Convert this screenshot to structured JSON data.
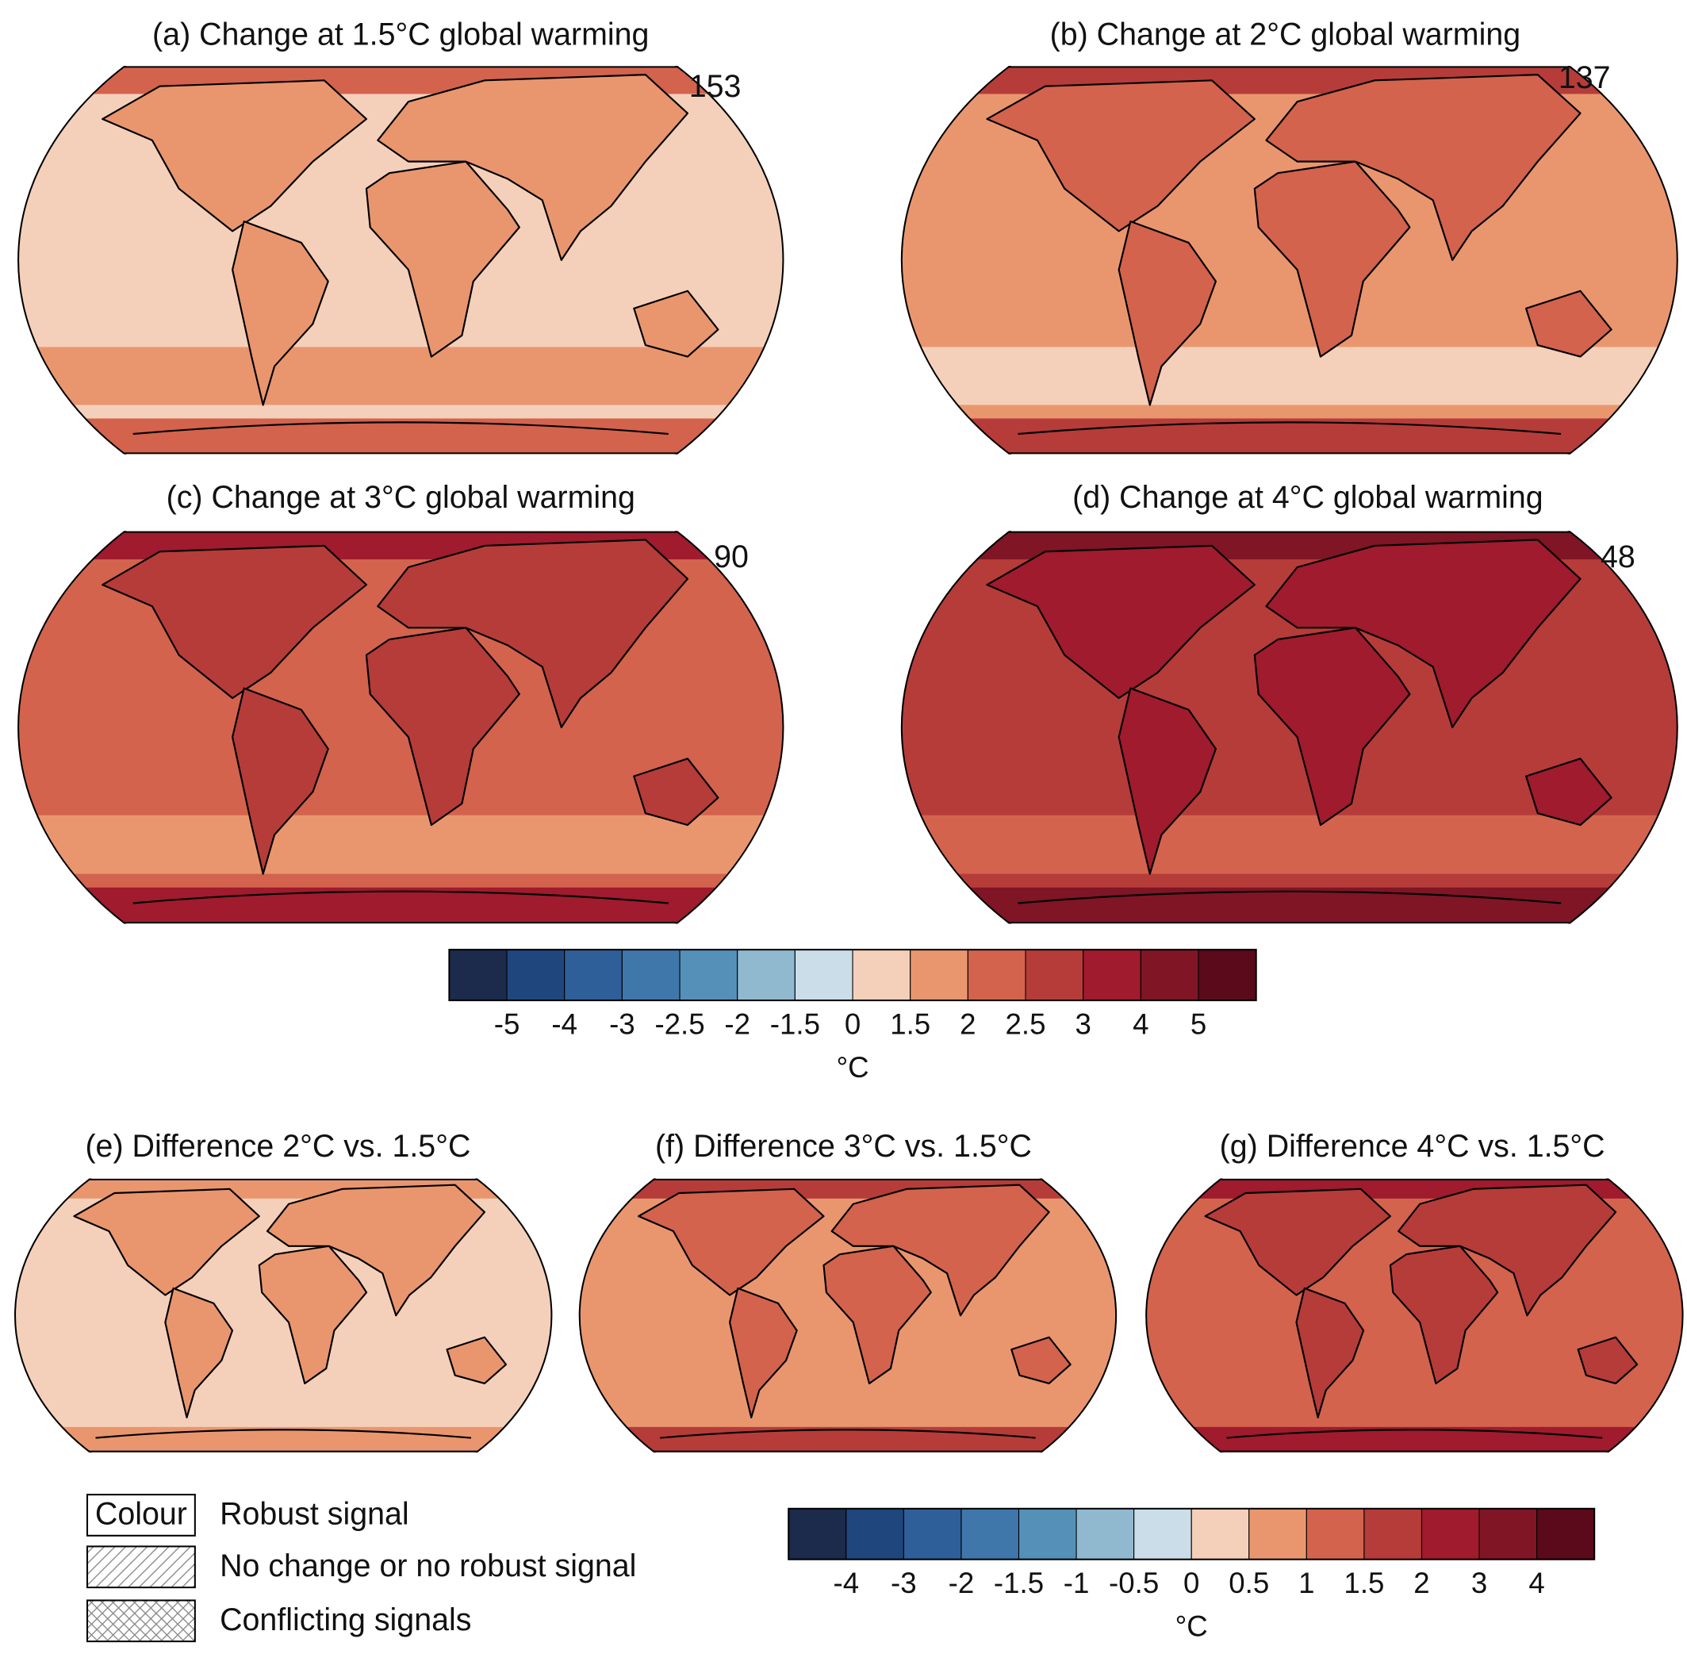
{
  "panels": [
    {
      "title": "(a) Change at 1.5°C global warming",
      "count": 153
    },
    {
      "title": "(b) Change at 2°C global warming",
      "count": 137
    },
    {
      "title": "(c) Change at 3°C global warming",
      "count": 90
    },
    {
      "title": "(d) Change at 4°C global warming",
      "count": 48
    }
  ],
  "difference_panels": [
    {
      "title": "(e) Difference 2°C vs. 1.5°C"
    },
    {
      "title": "(f) Difference 3°C vs. 1.5°C"
    },
    {
      "title": "(g) Difference 4°C vs. 1.5°C"
    }
  ],
  "colorbars": [
    {
      "colors": [
        "#1c2a4b",
        "#1f477d",
        "#2e5f99",
        "#3f77aa",
        "#5590b9",
        "#90b9d0",
        "#cadde8",
        "#f4d0ba",
        "#e9966f",
        "#d3634d",
        "#b63c39",
        "#9f1b2d",
        "#7f1525",
        "#5a0a1a"
      ],
      "levels": [
        -5,
        -4,
        -3,
        -2.5,
        -2,
        -1.5,
        0,
        1.5,
        2,
        2.5,
        3,
        4,
        5
      ],
      "label": "°C"
    },
    {
      "colors": [
        "#1c2a4b",
        "#1f477d",
        "#2e5f99",
        "#3f77aa",
        "#5590b9",
        "#90b9d0",
        "#cadde8",
        "#f4d0ba",
        "#e9966f",
        "#d3634d",
        "#b63c39",
        "#9f1b2d",
        "#7f1525",
        "#5a0a1a"
      ],
      "levels": [
        -4,
        -3,
        -2,
        -1.5,
        -1,
        -0.5,
        0,
        0.5,
        1,
        1.5,
        2,
        3,
        4
      ],
      "label": "°C"
    }
  ],
  "legend": [
    {
      "swatch": "Colour",
      "label": "Robust signal"
    },
    {
      "label": "No change or no robust signal"
    },
    {
      "label": "Conflicting signals"
    }
  ]
}
